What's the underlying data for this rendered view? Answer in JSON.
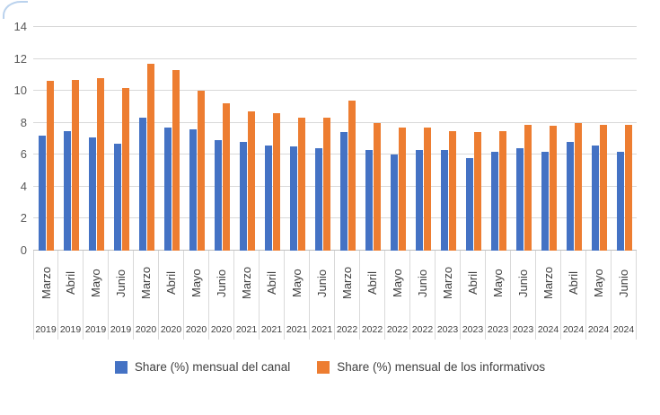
{
  "chart_data": {
    "type": "bar",
    "title": "",
    "xlabel": "",
    "ylabel": "",
    "ylim": [
      0,
      14
    ],
    "yticks": [
      0,
      2,
      4,
      6,
      8,
      10,
      12,
      14
    ],
    "grid": true,
    "legend_position": "bottom",
    "categories": [
      {
        "month": "Marzo",
        "year": "2019"
      },
      {
        "month": "Abril",
        "year": "2019"
      },
      {
        "month": "Mayo",
        "year": "2019"
      },
      {
        "month": "Junio",
        "year": "2019"
      },
      {
        "month": "Marzo",
        "year": "2020"
      },
      {
        "month": "Abril",
        "year": "2020"
      },
      {
        "month": "Mayo",
        "year": "2020"
      },
      {
        "month": "Junio",
        "year": "2020"
      },
      {
        "month": "Marzo",
        "year": "2021"
      },
      {
        "month": "Abril",
        "year": "2021"
      },
      {
        "month": "Mayo",
        "year": "2021"
      },
      {
        "month": "Junio",
        "year": "2021"
      },
      {
        "month": "Marzo",
        "year": "2022"
      },
      {
        "month": "Abril",
        "year": "2022"
      },
      {
        "month": "Mayo",
        "year": "2022"
      },
      {
        "month": "Junio",
        "year": "2022"
      },
      {
        "month": "Marzo",
        "year": "2023"
      },
      {
        "month": "Abril",
        "year": "2023"
      },
      {
        "month": "Mayo",
        "year": "2023"
      },
      {
        "month": "Junio",
        "year": "2023"
      },
      {
        "month": "Marzo",
        "year": "2024"
      },
      {
        "month": "Abril",
        "year": "2024"
      },
      {
        "month": "Mayo",
        "year": "2024"
      },
      {
        "month": "Junio",
        "year": "2024"
      }
    ],
    "series": [
      {
        "name": "Share (%) mensual del canal",
        "color": "#4472C4",
        "values": [
          7.2,
          7.5,
          7.1,
          6.7,
          8.3,
          7.7,
          7.6,
          6.9,
          6.8,
          6.6,
          6.5,
          6.4,
          7.4,
          6.3,
          6.0,
          6.3,
          6.3,
          5.8,
          6.2,
          6.4,
          6.2,
          6.8,
          6.6,
          6.2
        ]
      },
      {
        "name": "Share (%) mensual de los informativos",
        "color": "#ED7D31",
        "values": [
          10.6,
          10.7,
          10.8,
          10.2,
          11.7,
          11.3,
          10.0,
          9.2,
          8.7,
          8.6,
          8.3,
          8.3,
          9.4,
          8.0,
          7.7,
          7.7,
          7.5,
          7.4,
          7.5,
          7.9,
          7.8,
          8.0,
          7.9,
          7.9
        ]
      }
    ],
    "colors": {
      "gridline": "#D9D9D9",
      "axis_line": "#BFBFBF",
      "tick_label": "#595959",
      "category_label": "#404040",
      "legend_text": "#404040",
      "corner_accent": "#A9C7E9"
    }
  }
}
